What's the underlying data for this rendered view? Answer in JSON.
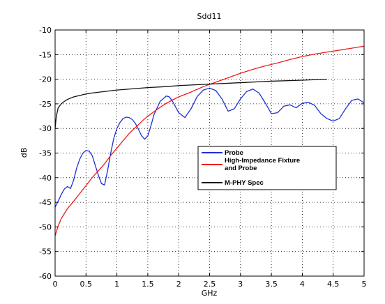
{
  "chart_data": {
    "type": "line",
    "title": "Sdd11",
    "xlabel": "GHz",
    "ylabel": "dB",
    "xlim": [
      0,
      5
    ],
    "ylim": [
      -60,
      -10
    ],
    "xticks": [
      "0",
      "0.5",
      "1",
      "1.5",
      "2",
      "2.5",
      "3",
      "3.5",
      "4",
      "4.5",
      "5"
    ],
    "yticks": [
      "-10",
      "-15",
      "-20",
      "-25",
      "-30",
      "-35",
      "-40",
      "-45",
      "-50",
      "-55",
      "-60"
    ],
    "grid": true,
    "legend_position": "center-right",
    "series": [
      {
        "name": "Probe",
        "color": "#1f2fd6",
        "x": [
          0,
          0.05,
          0.1,
          0.15,
          0.2,
          0.25,
          0.3,
          0.35,
          0.4,
          0.45,
          0.5,
          0.55,
          0.6,
          0.65,
          0.7,
          0.75,
          0.8,
          0.85,
          0.9,
          0.95,
          1.0,
          1.05,
          1.1,
          1.15,
          1.2,
          1.25,
          1.3,
          1.35,
          1.4,
          1.45,
          1.5,
          1.55,
          1.6,
          1.7,
          1.8,
          1.85,
          1.9,
          2.0,
          2.1,
          2.2,
          2.3,
          2.4,
          2.5,
          2.6,
          2.7,
          2.8,
          2.9,
          3.0,
          3.1,
          3.2,
          3.3,
          3.4,
          3.5,
          3.6,
          3.7,
          3.8,
          3.9,
          4.0,
          4.1,
          4.2,
          4.3,
          4.4,
          4.5,
          4.6,
          4.7,
          4.8,
          4.9,
          5.0
        ],
        "y": [
          -46.0,
          -44.8,
          -43.4,
          -42.3,
          -41.8,
          -42.2,
          -40.5,
          -38.0,
          -36.2,
          -35.0,
          -34.5,
          -34.6,
          -35.5,
          -37.5,
          -39.5,
          -41.2,
          -41.5,
          -38.5,
          -35.0,
          -32.0,
          -30.0,
          -28.8,
          -28.0,
          -27.7,
          -27.8,
          -28.2,
          -29.0,
          -30.2,
          -31.5,
          -32.2,
          -31.5,
          -29.5,
          -27.2,
          -24.5,
          -23.4,
          -23.6,
          -24.5,
          -26.8,
          -27.8,
          -26.0,
          -23.5,
          -22.2,
          -21.8,
          -22.3,
          -24.0,
          -26.5,
          -26.0,
          -24.0,
          -22.5,
          -22.0,
          -22.8,
          -24.8,
          -27.0,
          -26.8,
          -25.5,
          -25.2,
          -25.8,
          -24.9,
          -24.7,
          -25.3,
          -27.0,
          -28.0,
          -28.5,
          -28.0,
          -26.0,
          -24.3,
          -24.0,
          -24.8
        ]
      },
      {
        "name": "High-Impedance Fixture and Probe",
        "color": "#ee1c1c",
        "x": [
          0,
          0.05,
          0.1,
          0.2,
          0.3,
          0.4,
          0.5,
          0.6,
          0.7,
          0.8,
          0.9,
          1.0,
          1.1,
          1.2,
          1.3,
          1.4,
          1.5,
          1.6,
          1.7,
          1.8,
          1.9,
          2.0,
          2.2,
          2.4,
          2.6,
          2.8,
          3.0,
          3.2,
          3.4,
          3.6,
          3.8,
          4.0,
          4.2,
          4.4,
          4.6,
          4.8,
          5.0
        ],
        "y": [
          -51.8,
          -49.8,
          -48.3,
          -46.3,
          -44.8,
          -43.2,
          -41.6,
          -40.0,
          -38.6,
          -37.2,
          -35.5,
          -34.0,
          -32.5,
          -31.0,
          -29.8,
          -28.6,
          -27.5,
          -26.6,
          -25.7,
          -24.9,
          -24.2,
          -23.6,
          -22.6,
          -21.5,
          -20.6,
          -19.7,
          -18.8,
          -18.0,
          -17.3,
          -16.7,
          -16.0,
          -15.4,
          -14.9,
          -14.5,
          -14.1,
          -13.7,
          -13.3
        ]
      },
      {
        "name": "M-PHY Spec",
        "color": "#111111",
        "x": [
          0,
          0.02,
          0.05,
          0.1,
          0.15,
          0.2,
          0.3,
          0.4,
          0.5,
          0.6,
          0.8,
          1.0,
          1.2,
          1.5,
          1.8,
          2.0,
          2.5,
          3.0,
          3.5,
          4.0,
          4.4
        ],
        "y": [
          -30.0,
          -27.5,
          -25.8,
          -25.0,
          -24.5,
          -24.1,
          -23.6,
          -23.3,
          -23.0,
          -22.8,
          -22.5,
          -22.2,
          -22.0,
          -21.7,
          -21.5,
          -21.3,
          -21.0,
          -20.7,
          -20.4,
          -20.2,
          -20.0
        ]
      }
    ]
  }
}
